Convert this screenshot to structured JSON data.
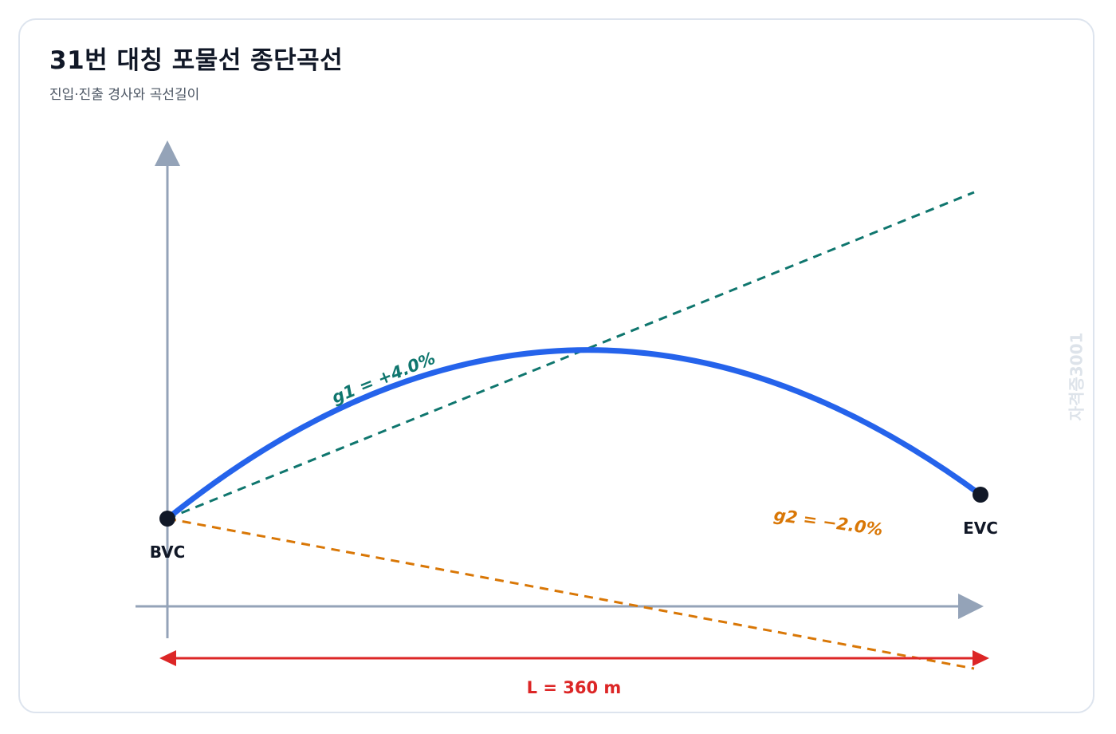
{
  "header": {
    "title": "31번 대칭 포물선 종단곡선",
    "subtitle": "진입·진출 경사와 곡선길이"
  },
  "diagram": {
    "points": {
      "start_label": "BVC",
      "end_label": "EVC"
    },
    "grades": {
      "g1_label": "g1 = +4.0%",
      "g2_label": "g2 = −2.0%",
      "g1_percent": 4.0,
      "g2_percent": -2.0
    },
    "length_label": "L = 360 m",
    "length_m": 360,
    "watermark": "자격증3001"
  },
  "colors": {
    "curve": "#2563eb",
    "tangent_in": "#0f766e",
    "tangent_out": "#d97706",
    "length_arrow": "#dc2626",
    "axis": "#94a3b8",
    "point": "#111827"
  }
}
